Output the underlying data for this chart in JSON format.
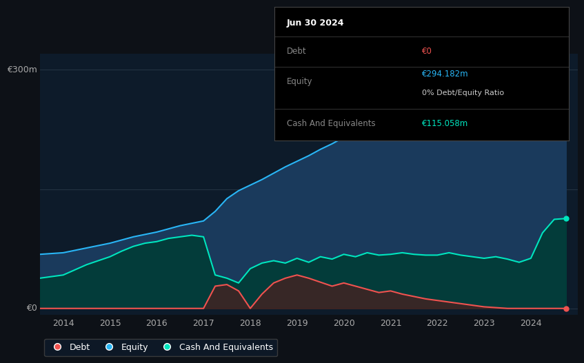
{
  "background_color": "#0d1117",
  "plot_bg_color": "#0d1b2a",
  "ylabel_300": "€300m",
  "ylabel_0": "€0",
  "xlim": [
    2013.5,
    2025.0
  ],
  "ylim": [
    -8,
    320
  ],
  "xticks": [
    2014,
    2015,
    2016,
    2017,
    2018,
    2019,
    2020,
    2021,
    2022,
    2023,
    2024
  ],
  "equity_color": "#29b6f6",
  "equity_fill": "#1a3a5c",
  "debt_color": "#ef5350",
  "cash_color": "#00e5bf",
  "cash_fill": "#003d35",
  "equity_x": [
    2013.5,
    2014.0,
    2014.5,
    2015.0,
    2015.5,
    2016.0,
    2016.5,
    2017.0,
    2017.25,
    2017.5,
    2017.75,
    2018.0,
    2018.25,
    2018.5,
    2018.75,
    2019.0,
    2019.25,
    2019.5,
    2019.75,
    2020.0,
    2020.25,
    2020.5,
    2020.75,
    2021.0,
    2021.25,
    2021.5,
    2021.75,
    2022.0,
    2022.25,
    2022.5,
    2022.75,
    2023.0,
    2023.25,
    2023.5,
    2023.75,
    2024.0,
    2024.25,
    2024.5,
    2024.75
  ],
  "equity_y": [
    68,
    70,
    76,
    82,
    90,
    96,
    104,
    110,
    122,
    138,
    148,
    155,
    162,
    170,
    178,
    185,
    192,
    200,
    207,
    215,
    222,
    228,
    233,
    238,
    243,
    248,
    252,
    257,
    262,
    266,
    270,
    273,
    277,
    281,
    286,
    290,
    294,
    298,
    302
  ],
  "cash_x": [
    2013.5,
    2014.0,
    2014.5,
    2015.0,
    2015.25,
    2015.5,
    2015.75,
    2016.0,
    2016.25,
    2016.5,
    2016.75,
    2017.0,
    2017.25,
    2017.5,
    2017.75,
    2018.0,
    2018.25,
    2018.5,
    2018.75,
    2019.0,
    2019.25,
    2019.5,
    2019.75,
    2020.0,
    2020.25,
    2020.5,
    2020.75,
    2021.0,
    2021.25,
    2021.5,
    2021.75,
    2022.0,
    2022.25,
    2022.5,
    2022.75,
    2023.0,
    2023.25,
    2023.5,
    2023.75,
    2024.0,
    2024.25,
    2024.5,
    2024.75
  ],
  "cash_y": [
    38,
    42,
    55,
    65,
    72,
    78,
    82,
    84,
    88,
    90,
    92,
    90,
    42,
    38,
    32,
    50,
    57,
    60,
    57,
    63,
    58,
    65,
    62,
    68,
    65,
    70,
    67,
    68,
    70,
    68,
    67,
    67,
    70,
    67,
    65,
    63,
    65,
    62,
    58,
    63,
    95,
    112,
    113
  ],
  "debt_x": [
    2013.5,
    2014.0,
    2014.5,
    2015.0,
    2015.5,
    2016.0,
    2016.5,
    2017.0,
    2017.25,
    2017.5,
    2017.75,
    2018.0,
    2018.25,
    2018.5,
    2018.75,
    2019.0,
    2019.25,
    2019.5,
    2019.75,
    2020.0,
    2020.25,
    2020.5,
    2020.75,
    2021.0,
    2021.25,
    2021.5,
    2021.75,
    2022.0,
    2022.25,
    2022.5,
    2022.75,
    2023.0,
    2023.25,
    2023.5,
    2023.75,
    2024.0,
    2024.25,
    2024.5,
    2024.75
  ],
  "debt_y": [
    0,
    0,
    0,
    0,
    0,
    0,
    0,
    0,
    28,
    30,
    22,
    0,
    18,
    32,
    38,
    42,
    38,
    33,
    28,
    32,
    28,
    24,
    20,
    22,
    18,
    15,
    12,
    10,
    8,
    6,
    4,
    2,
    1,
    0,
    0,
    0,
    0,
    0,
    0
  ],
  "legend_items": [
    "Debt",
    "Equity",
    "Cash And Equivalents"
  ],
  "legend_colors": [
    "#ef5350",
    "#29b6f6",
    "#00e5bf"
  ],
  "tooltip_date": "Jun 30 2024",
  "tooltip_debt_label": "Debt",
  "tooltip_debt_value": "€0",
  "tooltip_equity_label": "Equity",
  "tooltip_equity_value": "€294.182m",
  "tooltip_equity_ratio": "0% Debt/Equity Ratio",
  "tooltip_cash_label": "Cash And Equivalents",
  "tooltip_cash_value": "€115.058m"
}
